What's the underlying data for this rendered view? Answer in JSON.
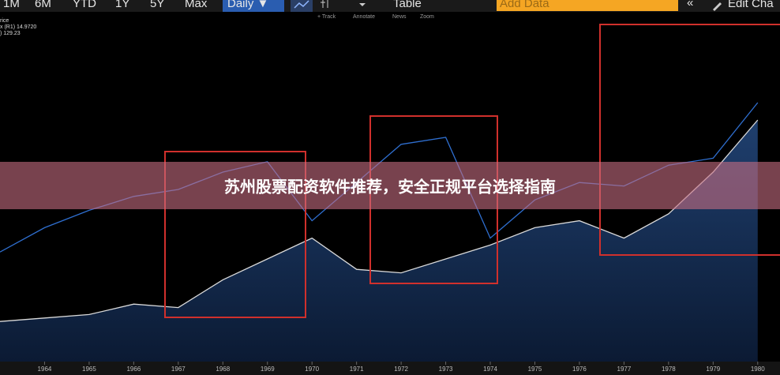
{
  "toolbar": {
    "ranges": [
      "1M",
      "6M",
      "YTD",
      "1Y",
      "5Y",
      "Max"
    ],
    "interval": "Daily ▼",
    "table": "Table",
    "add_data": "Add Data",
    "collapse": "«",
    "edit": "Edit Cha"
  },
  "subtoolbar": [
    "+ Track",
    "Annotate",
    "News",
    "Zoom"
  ],
  "legend": [
    "rice",
    "x (R1)  14.9720",
    ")  129.23"
  ],
  "banner": "苏州股票配资软件推荐，安全正规平台选择指南",
  "chart_data": {
    "type": "line",
    "x": [
      1963,
      1964,
      1965,
      1966,
      1967,
      1968,
      1969,
      1970,
      1971,
      1972,
      1973,
      1974,
      1975,
      1976,
      1977,
      1978,
      1979,
      1980
    ],
    "series": [
      {
        "color": "#d9d9d9",
        "values": [
          12,
          13,
          14,
          17,
          16,
          24,
          30,
          36,
          27,
          26,
          30,
          34,
          39,
          41,
          36,
          43,
          55,
          70
        ]
      },
      {
        "color": "#2f6fd0",
        "values": [
          32,
          39,
          44,
          48,
          50,
          55,
          58,
          41,
          52,
          63,
          65,
          36,
          47,
          52,
          51,
          57,
          59,
          75
        ]
      }
    ],
    "xlim": [
      1963,
      1980.5
    ],
    "ylim": [
      0,
      100
    ],
    "xticks": [
      1964,
      1965,
      1966,
      1967,
      1968,
      1969,
      1970,
      1971,
      1972,
      1973,
      1974,
      1975,
      1976,
      1977,
      1978,
      1979,
      1980
    ]
  }
}
